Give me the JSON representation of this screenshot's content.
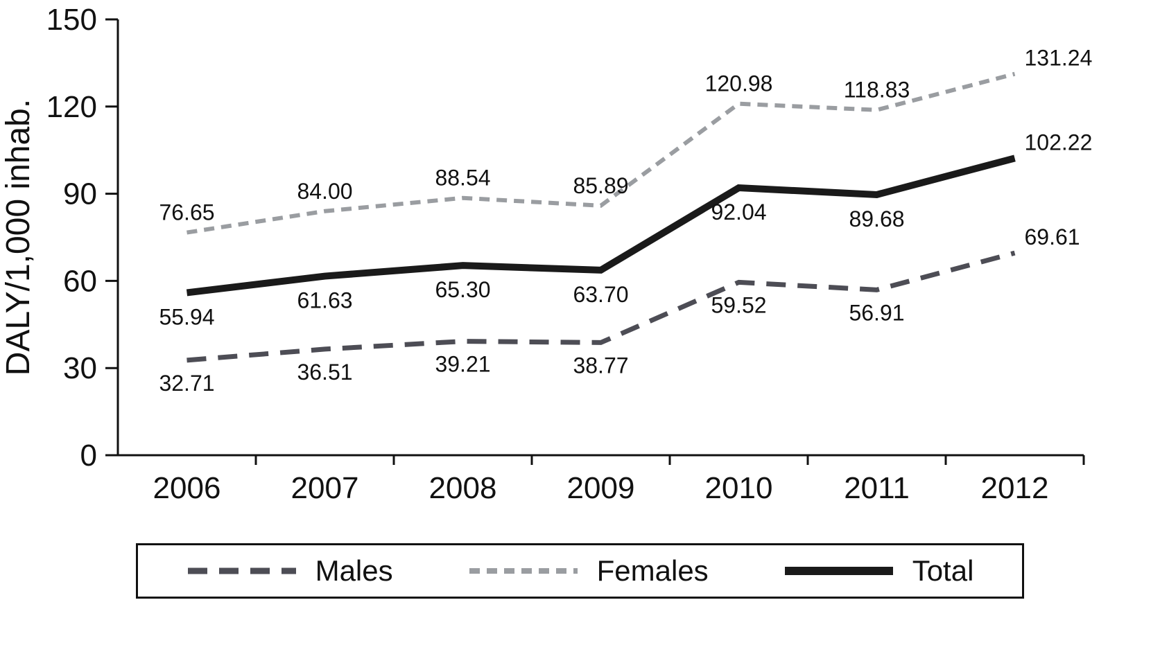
{
  "chart_data": {
    "type": "line",
    "title": "",
    "xlabel": "",
    "ylabel": "DALY/1,000 inhab.",
    "categories": [
      "2006",
      "2007",
      "2008",
      "2009",
      "2010",
      "2011",
      "2012"
    ],
    "yticks": [
      0,
      30,
      60,
      90,
      120,
      150
    ],
    "ylim": [
      0,
      150
    ],
    "grid": false,
    "legend_position": "bottom",
    "series": [
      {
        "name": "Males",
        "color": "#4d4d55",
        "line_style": "dashed-long",
        "values": [
          32.71,
          36.51,
          39.21,
          38.77,
          59.52,
          56.91,
          69.61
        ]
      },
      {
        "name": "Females",
        "color": "#9a9da1",
        "line_style": "dashed-short",
        "values": [
          76.65,
          84.0,
          88.54,
          85.89,
          120.98,
          118.83,
          131.24
        ]
      },
      {
        "name": "Total",
        "color": "#1a1a1a",
        "line_style": "solid",
        "values": [
          55.94,
          61.63,
          65.3,
          63.7,
          92.04,
          89.68,
          102.22
        ]
      }
    ],
    "label_color": "#111111",
    "axis_color": "#111111"
  }
}
